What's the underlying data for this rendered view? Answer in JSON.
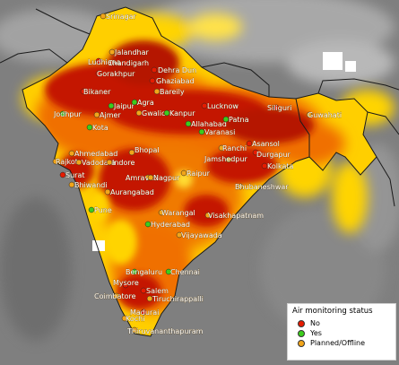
{
  "colors": {
    "no": "#e61b00",
    "yes": "#3ccd1c",
    "planned": "#f2a51a",
    "heat_high": "#b51400",
    "heat_mid": "#f06a00",
    "heat_low": "#ffd400",
    "background": "#7d7d7d"
  },
  "legend": {
    "title": "Air monitoring status",
    "items": [
      {
        "label": "No",
        "status": "no"
      },
      {
        "label": "Yes",
        "status": "yes"
      },
      {
        "label": "Planned/Offline",
        "status": "planned"
      }
    ]
  },
  "cities": [
    {
      "name": "Srinagar",
      "status": "planned"
    },
    {
      "name": "Jalandhar",
      "status": "planned"
    },
    {
      "name": "Ludhiana",
      "status": "no"
    },
    {
      "name": "Chandigarh",
      "status": "no"
    },
    {
      "name": "Gorakhpur",
      "status": "no"
    },
    {
      "name": "Dehra Dun",
      "status": "no"
    },
    {
      "name": "Ghaziabad",
      "status": "no"
    },
    {
      "name": "Bareily",
      "status": "planned"
    },
    {
      "name": "Bikaner",
      "status": "no"
    },
    {
      "name": "Jaipur",
      "status": "yes"
    },
    {
      "name": "Agra",
      "status": "yes"
    },
    {
      "name": "Jodhpur",
      "status": "yes"
    },
    {
      "name": "Ajmer",
      "status": "planned"
    },
    {
      "name": "Gwalior",
      "status": "planned"
    },
    {
      "name": "Kanpur",
      "status": "yes"
    },
    {
      "name": "Lucknow",
      "status": "no"
    },
    {
      "name": "Allahabad",
      "status": "yes"
    },
    {
      "name": "Varanasi",
      "status": "yes"
    },
    {
      "name": "Patna",
      "status": "yes"
    },
    {
      "name": "Siliguri",
      "status": "no"
    },
    {
      "name": "Guwahati",
      "status": "planned"
    },
    {
      "name": "Kota",
      "status": "yes"
    },
    {
      "name": "Bhopal",
      "status": "planned"
    },
    {
      "name": "Ranchi",
      "status": "planned"
    },
    {
      "name": "Asansol",
      "status": "no"
    },
    {
      "name": "Durgapur",
      "status": "no"
    },
    {
      "name": "Jamshedpur",
      "status": "planned"
    },
    {
      "name": "Kolkata",
      "status": "no"
    },
    {
      "name": "Ahmedabad",
      "status": "planned"
    },
    {
      "name": "Rajkot",
      "status": "planned"
    },
    {
      "name": "Vadodara",
      "status": "planned"
    },
    {
      "name": "Indore",
      "status": "planned"
    },
    {
      "name": "Surat",
      "status": "no"
    },
    {
      "name": "Bhiwandi",
      "status": "planned"
    },
    {
      "name": "Amravati",
      "status": "planned"
    },
    {
      "name": "Nagpur",
      "status": "planned"
    },
    {
      "name": "Raipur",
      "status": "planned"
    },
    {
      "name": "Aurangabad",
      "status": "planned"
    },
    {
      "name": "Bhubaneshwar",
      "status": "planned"
    },
    {
      "name": "Pune",
      "status": "yes"
    },
    {
      "name": "Warangal",
      "status": "planned"
    },
    {
      "name": "Hyderabad",
      "status": "yes"
    },
    {
      "name": "Visakhapatnam",
      "status": "planned"
    },
    {
      "name": "Vijayawada",
      "status": "planned"
    },
    {
      "name": "Bengaluru",
      "status": "yes"
    },
    {
      "name": "Chennai",
      "status": "yes"
    },
    {
      "name": "Mysore",
      "status": "no"
    },
    {
      "name": "Salem",
      "status": "no"
    },
    {
      "name": "Coimbatore",
      "status": "planned"
    },
    {
      "name": "Tiruchirappalli",
      "status": "planned"
    },
    {
      "name": "Madurai",
      "status": "no"
    },
    {
      "name": "Kochi",
      "status": "planned"
    },
    {
      "name": "Thiruvananthapuram",
      "status": "planned"
    }
  ]
}
